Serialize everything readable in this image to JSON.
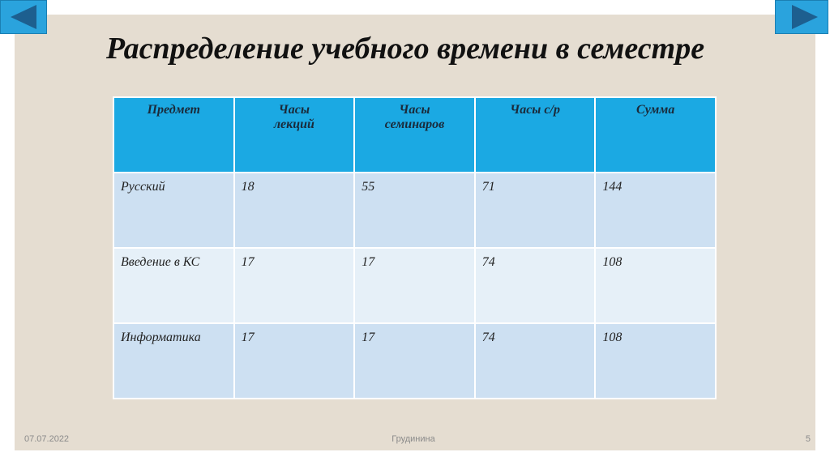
{
  "title": "Распределение учебного времени в семестре",
  "table": {
    "header": [
      "Предмет",
      "Часы лекций",
      "Часы семинаров",
      "Часы с/р",
      "Сумма"
    ],
    "rows": [
      [
        "Русский",
        18,
        55,
        71,
        144
      ],
      [
        "Введение в КС",
        17,
        17,
        74,
        108
      ],
      [
        "Информатика",
        17,
        17,
        74,
        108
      ]
    ]
  },
  "footer": {
    "date": "07.07.2022",
    "author": "Грудинина",
    "page": 5
  }
}
